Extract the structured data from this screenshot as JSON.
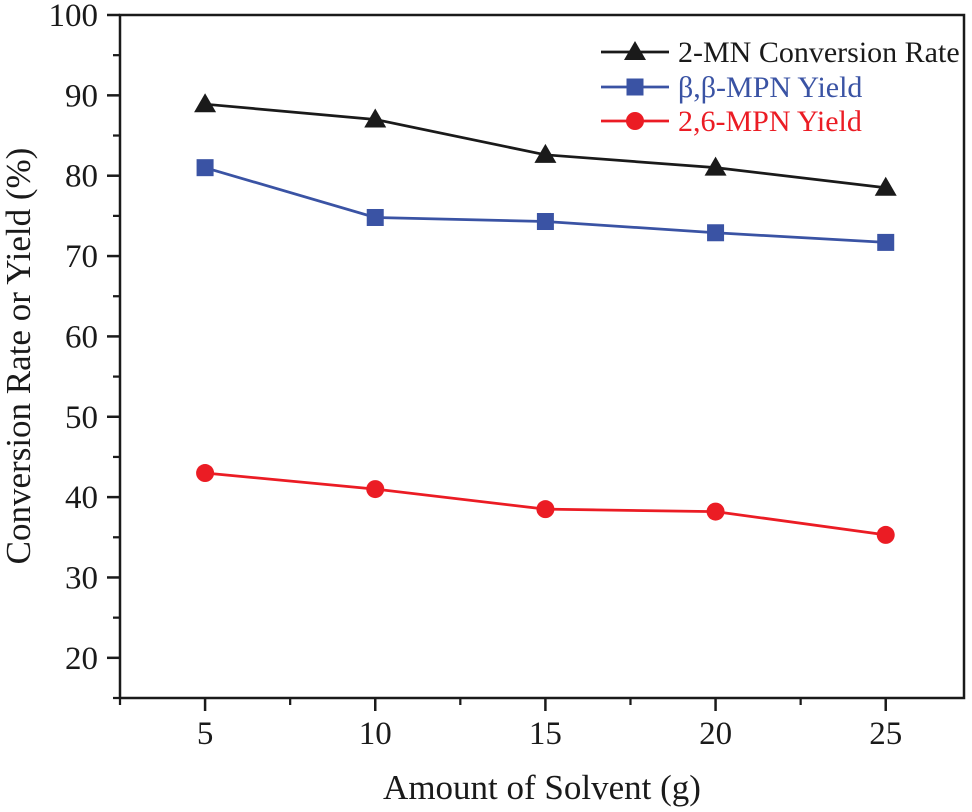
{
  "figure": {
    "background": "#ffffff",
    "frame_color": "#1a1a1a"
  },
  "chart_data": {
    "type": "line",
    "title": "",
    "xlabel": "Amount of Solvent (g)",
    "ylabel": "Conversion Rate or Yield (%)",
    "x": [
      5,
      10,
      15,
      20,
      25
    ],
    "series": [
      {
        "name": "2-MN Conversion Rate",
        "color": "#1a1a1a",
        "marker": "triangle",
        "values": [
          88.9,
          87.0,
          82.6,
          81.0,
          78.5
        ]
      },
      {
        "name": "β,β-MPN Yield",
        "color": "#3a53a4",
        "marker": "square",
        "values": [
          81.0,
          74.8,
          74.3,
          72.9,
          71.7
        ]
      },
      {
        "name": "2,6-MPN Yield",
        "color": "#eb1c24",
        "marker": "circle",
        "values": [
          43.0,
          41.0,
          38.5,
          38.2,
          35.3
        ]
      }
    ],
    "xlim": [
      2.5,
      27.3
    ],
    "ylim": [
      15,
      100
    ],
    "xticks": [
      5,
      10,
      15,
      20,
      25
    ],
    "yticks": [
      20,
      30,
      40,
      50,
      60,
      70,
      80,
      90,
      100
    ],
    "x_minor_step": 2.5,
    "y_minor_step": 5,
    "grid": false,
    "legend_position": "top-right"
  }
}
